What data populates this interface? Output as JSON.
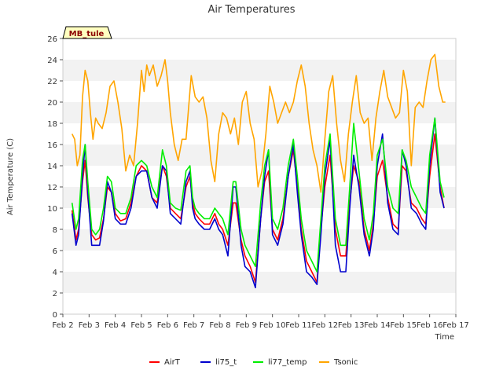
{
  "chart_data": {
    "type": "line",
    "title": "Air Temperatures",
    "xlabel": "Time",
    "ylabel": "Air Temperature (C)",
    "badge": "MB_tule",
    "xlim": [
      2,
      17
    ],
    "ylim": [
      0,
      26
    ],
    "x_ticks": [
      {
        "v": 2,
        "label": "Feb 2"
      },
      {
        "v": 3,
        "label": "Feb 3"
      },
      {
        "v": 4,
        "label": "Feb 4"
      },
      {
        "v": 5,
        "label": "Feb 5"
      },
      {
        "v": 6,
        "label": "Feb 6"
      },
      {
        "v": 7,
        "label": "Feb 7"
      },
      {
        "v": 8,
        "label": "Feb 8"
      },
      {
        "v": 9,
        "label": "Feb 9"
      },
      {
        "v": 10,
        "label": "Feb 10"
      },
      {
        "v": 11,
        "label": "Feb 11"
      },
      {
        "v": 12,
        "label": "Feb 12"
      },
      {
        "v": 13,
        "label": "Feb 13"
      },
      {
        "v": 14,
        "label": "Feb 14"
      },
      {
        "v": 15,
        "label": "Feb 15"
      },
      {
        "v": 16,
        "label": "Feb 16"
      },
      {
        "v": 17,
        "label": "Feb 17"
      }
    ],
    "y_ticks": [
      0,
      2,
      4,
      6,
      8,
      10,
      12,
      14,
      16,
      18,
      20,
      22,
      24,
      26
    ],
    "grid": true,
    "legend_position": "bottom",
    "series": [
      {
        "name": "AirT",
        "color": "#ff0000",
        "x": [
          2.35,
          2.5,
          2.6,
          2.75,
          2.85,
          2.95,
          3.1,
          3.25,
          3.4,
          3.55,
          3.7,
          3.85,
          4.0,
          4.2,
          4.4,
          4.6,
          4.8,
          5.0,
          5.2,
          5.4,
          5.6,
          5.8,
          5.95,
          6.1,
          6.3,
          6.5,
          6.7,
          6.85,
          6.95,
          7.05,
          7.2,
          7.4,
          7.6,
          7.8,
          7.95,
          8.1,
          8.3,
          8.5,
          8.6,
          8.8,
          8.95,
          9.15,
          9.35,
          9.55,
          9.7,
          9.85,
          10.0,
          10.2,
          10.4,
          10.6,
          10.8,
          10.95,
          11.1,
          11.3,
          11.5,
          11.7,
          11.85,
          12.0,
          12.2,
          12.4,
          12.6,
          12.8,
          12.95,
          13.1,
          13.3,
          13.5,
          13.7,
          13.85,
          14.0,
          14.2,
          14.4,
          14.6,
          14.8,
          14.95,
          15.1,
          15.3,
          15.5,
          15.7,
          15.85,
          16.0,
          16.2,
          16.4,
          16.55
        ],
        "y": [
          9.8,
          7.0,
          8.0,
          12.5,
          14.5,
          11.0,
          7.5,
          7.0,
          7.2,
          9.0,
          12.0,
          11.5,
          9.5,
          8.8,
          9.0,
          10.5,
          13.0,
          14.0,
          13.5,
          11.0,
          10.5,
          14.0,
          13.0,
          10.0,
          9.5,
          9.0,
          12.0,
          13.0,
          10.5,
          9.5,
          9.0,
          8.5,
          8.5,
          9.5,
          8.5,
          8.0,
          6.5,
          10.5,
          10.5,
          7.0,
          5.5,
          4.5,
          3.0,
          9.0,
          12.5,
          13.5,
          8.0,
          7.0,
          9.0,
          13.0,
          15.5,
          12.0,
          8.0,
          5.0,
          4.0,
          3.0,
          8.0,
          12.0,
          15.0,
          8.0,
          5.5,
          5.5,
          10.5,
          14.0,
          12.5,
          8.0,
          6.0,
          8.5,
          13.0,
          14.5,
          11.0,
          8.5,
          8.0,
          14.0,
          13.5,
          10.5,
          10.0,
          9.0,
          8.5,
          13.0,
          17.0,
          12.0,
          10.0
        ]
      },
      {
        "name": "li75_t",
        "color": "#0000cd",
        "x": [
          2.35,
          2.5,
          2.6,
          2.75,
          2.85,
          2.95,
          3.1,
          3.25,
          3.4,
          3.55,
          3.7,
          3.85,
          4.0,
          4.2,
          4.4,
          4.6,
          4.8,
          5.0,
          5.2,
          5.4,
          5.6,
          5.8,
          5.95,
          6.1,
          6.3,
          6.5,
          6.7,
          6.85,
          6.95,
          7.05,
          7.2,
          7.4,
          7.6,
          7.8,
          7.95,
          8.1,
          8.3,
          8.5,
          8.6,
          8.8,
          8.95,
          9.15,
          9.35,
          9.55,
          9.7,
          9.85,
          10.0,
          10.2,
          10.4,
          10.6,
          10.8,
          10.95,
          11.1,
          11.3,
          11.5,
          11.7,
          11.85,
          12.0,
          12.2,
          12.4,
          12.6,
          12.8,
          12.95,
          13.1,
          13.3,
          13.5,
          13.7,
          13.85,
          14.0,
          14.2,
          14.4,
          14.6,
          14.8,
          14.95,
          15.1,
          15.3,
          15.5,
          15.7,
          15.85,
          16.0,
          16.2,
          16.4,
          16.55
        ],
        "y": [
          9.5,
          6.5,
          7.5,
          13.0,
          16.0,
          11.5,
          6.5,
          6.5,
          6.5,
          8.8,
          12.5,
          11.5,
          9.0,
          8.5,
          8.5,
          10.0,
          13.0,
          13.5,
          13.5,
          11.0,
          10.0,
          14.0,
          13.5,
          9.5,
          9.0,
          8.5,
          12.5,
          13.5,
          10.0,
          9.0,
          8.5,
          8.0,
          8.0,
          9.0,
          8.0,
          7.5,
          5.5,
          12.0,
          12.0,
          6.5,
          4.5,
          4.0,
          2.5,
          9.0,
          13.0,
          15.5,
          7.5,
          6.5,
          8.5,
          13.0,
          16.0,
          11.5,
          7.5,
          4.0,
          3.5,
          2.8,
          7.5,
          13.0,
          16.5,
          6.5,
          4.0,
          4.0,
          10.0,
          15.0,
          12.0,
          7.5,
          5.5,
          8.0,
          14.0,
          17.0,
          10.5,
          8.0,
          7.5,
          15.5,
          14.0,
          10.0,
          9.5,
          8.5,
          8.0,
          14.0,
          18.5,
          11.5,
          10.0
        ]
      },
      {
        "name": "li77_temp",
        "color": "#00ee00",
        "x": [
          2.35,
          2.5,
          2.6,
          2.75,
          2.85,
          2.95,
          3.1,
          3.25,
          3.4,
          3.55,
          3.7,
          3.85,
          4.0,
          4.2,
          4.4,
          4.6,
          4.8,
          5.0,
          5.2,
          5.4,
          5.6,
          5.8,
          5.95,
          6.1,
          6.3,
          6.5,
          6.7,
          6.85,
          6.95,
          7.05,
          7.2,
          7.4,
          7.6,
          7.8,
          7.95,
          8.1,
          8.3,
          8.5,
          8.6,
          8.8,
          8.95,
          9.15,
          9.35,
          9.55,
          9.7,
          9.85,
          10.0,
          10.2,
          10.4,
          10.6,
          10.8,
          10.95,
          11.1,
          11.3,
          11.5,
          11.7,
          11.85,
          12.0,
          12.2,
          12.4,
          12.6,
          12.8,
          12.95,
          13.1,
          13.3,
          13.5,
          13.7,
          13.85,
          14.0,
          14.2,
          14.4,
          14.6,
          14.8,
          14.95,
          15.1,
          15.3,
          15.5,
          15.7,
          15.85,
          16.0,
          16.2,
          16.4,
          16.55
        ],
        "y": [
          10.5,
          8.0,
          9.0,
          14.5,
          16.0,
          12.5,
          8.0,
          7.5,
          8.0,
          10.0,
          13.0,
          12.5,
          10.0,
          9.5,
          9.5,
          11.0,
          14.0,
          14.5,
          14.0,
          12.0,
          11.0,
          15.5,
          14.0,
          10.5,
          10.0,
          9.8,
          13.5,
          14.0,
          11.0,
          10.0,
          9.5,
          9.0,
          9.0,
          10.0,
          9.5,
          9.0,
          7.5,
          12.5,
          12.5,
          8.0,
          6.5,
          5.5,
          4.5,
          10.5,
          14.0,
          15.5,
          9.0,
          8.0,
          10.0,
          14.0,
          16.5,
          13.0,
          9.0,
          6.0,
          5.0,
          4.0,
          9.0,
          14.0,
          17.0,
          9.0,
          6.5,
          6.5,
          12.0,
          18.0,
          13.5,
          9.0,
          7.0,
          9.5,
          15.0,
          16.5,
          12.0,
          10.0,
          9.5,
          15.5,
          14.5,
          12.0,
          11.0,
          10.0,
          9.5,
          15.0,
          18.5,
          12.5,
          11.0
        ]
      },
      {
        "name": "Tsonic",
        "color": "#ffa500",
        "x": [
          2.35,
          2.45,
          2.55,
          2.65,
          2.75,
          2.85,
          2.95,
          3.05,
          3.15,
          3.25,
          3.35,
          3.5,
          3.65,
          3.8,
          3.95,
          4.1,
          4.25,
          4.4,
          4.55,
          4.7,
          4.85,
          5.0,
          5.1,
          5.2,
          5.3,
          5.45,
          5.6,
          5.75,
          5.9,
          6.0,
          6.1,
          6.25,
          6.4,
          6.55,
          6.7,
          6.8,
          6.9,
          7.05,
          7.2,
          7.35,
          7.5,
          7.65,
          7.8,
          7.95,
          8.1,
          8.25,
          8.4,
          8.55,
          8.7,
          8.85,
          9.0,
          9.15,
          9.3,
          9.45,
          9.6,
          9.75,
          9.9,
          10.05,
          10.2,
          10.35,
          10.5,
          10.65,
          10.8,
          10.95,
          11.1,
          11.25,
          11.4,
          11.55,
          11.7,
          11.85,
          12.0,
          12.15,
          12.3,
          12.45,
          12.6,
          12.75,
          12.9,
          13.05,
          13.2,
          13.35,
          13.5,
          13.65,
          13.8,
          13.95,
          14.1,
          14.25,
          14.4,
          14.55,
          14.7,
          14.85,
          15.0,
          15.15,
          15.3,
          15.45,
          15.6,
          15.75,
          15.9,
          16.05,
          16.2,
          16.35,
          16.5,
          16.6
        ],
        "y": [
          17.0,
          16.5,
          14.0,
          15.0,
          20.5,
          23.0,
          22.0,
          19.0,
          16.5,
          18.5,
          18.0,
          17.5,
          19.0,
          21.5,
          22.0,
          20.0,
          17.5,
          13.5,
          15.0,
          14.0,
          18.0,
          23.0,
          21.0,
          23.5,
          22.5,
          23.5,
          21.5,
          22.5,
          24.0,
          22.0,
          19.0,
          16.0,
          14.5,
          16.5,
          16.5,
          19.5,
          22.5,
          20.5,
          20.0,
          20.5,
          18.5,
          14.5,
          12.5,
          17.0,
          19.0,
          18.5,
          17.0,
          18.5,
          16.0,
          20.0,
          21.0,
          18.0,
          16.5,
          12.0,
          13.5,
          17.0,
          21.5,
          20.0,
          18.0,
          19.0,
          20.0,
          19.0,
          20.0,
          22.0,
          23.5,
          21.5,
          18.0,
          15.5,
          14.0,
          11.5,
          16.5,
          21.0,
          22.5,
          18.0,
          14.5,
          12.5,
          17.0,
          20.0,
          22.5,
          19.0,
          18.0,
          18.5,
          14.5,
          18.5,
          21.0,
          23.0,
          20.5,
          19.5,
          18.5,
          19.0,
          23.0,
          21.0,
          14.0,
          19.5,
          20.0,
          19.5,
          22.0,
          24.0,
          24.5,
          21.5,
          20.0,
          20.0
        ]
      }
    ]
  }
}
